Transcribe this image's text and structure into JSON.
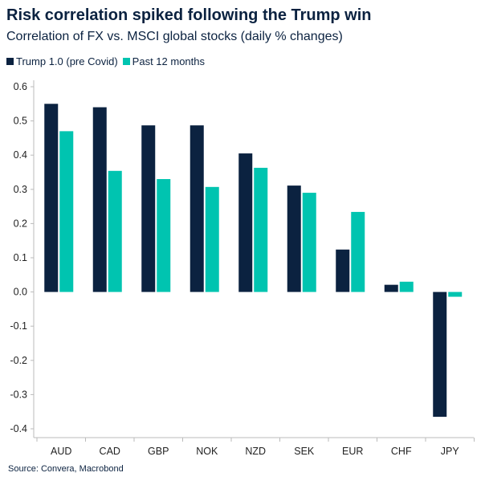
{
  "chart_data": {
    "type": "bar",
    "title": "Risk correlation spiked following the Trump win",
    "subtitle": "Correlation of FX vs. MSCI global stocks (daily % changes)",
    "source": "Source: Convera, Macrobond",
    "categories": [
      "AUD",
      "CAD",
      "GBP",
      "NOK",
      "NZD",
      "SEK",
      "EUR",
      "CHF",
      "JPY"
    ],
    "series": [
      {
        "name": "Trump 1.0 (pre Covid)",
        "color": "#0b2240",
        "values": [
          0.55,
          0.54,
          0.487,
          0.487,
          0.405,
          0.311,
          0.124,
          0.021,
          -0.365
        ]
      },
      {
        "name": "Past 12 months",
        "color": "#00c4b0",
        "values": [
          0.47,
          0.354,
          0.33,
          0.307,
          0.363,
          0.29,
          0.234,
          0.03,
          -0.014
        ]
      }
    ],
    "ylim": [
      -0.4,
      0.6
    ],
    "yticks": [
      "0.6",
      "0.5",
      "0.4",
      "0.3",
      "0.2",
      "0.1",
      "0.0",
      "-0.1",
      "-0.2",
      "-0.3",
      "-0.4"
    ],
    "grid": false,
    "legend": "top-left"
  }
}
